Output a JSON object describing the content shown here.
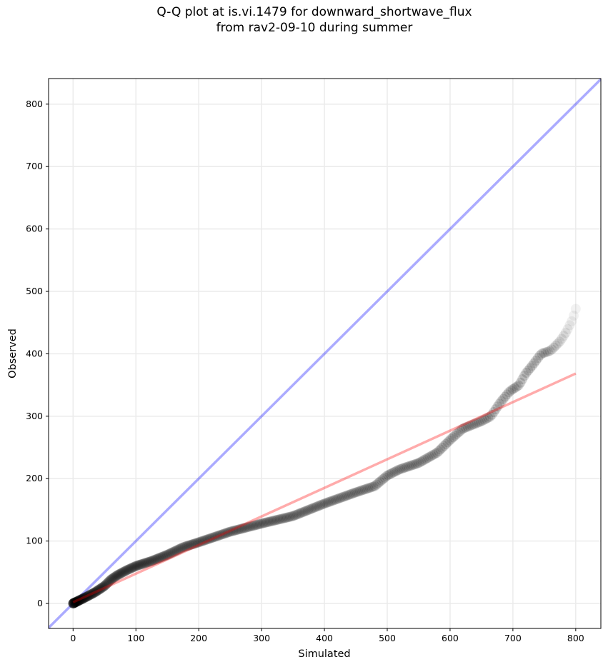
{
  "chart_data": {
    "type": "scatter",
    "title": [
      "Q-Q plot at is.vi.1479 for downward_shortwave_flux",
      "from rav2-09-10 during summer"
    ],
    "xlabel": "Simulated",
    "ylabel": "Observed",
    "xlim": [
      -39,
      840
    ],
    "ylim": [
      -40,
      841
    ],
    "xticks": [
      0,
      100,
      200,
      300,
      400,
      500,
      600,
      700,
      800
    ],
    "yticks": [
      0,
      100,
      200,
      300,
      400,
      500,
      600,
      700,
      800
    ],
    "grid": true,
    "quantiles": {
      "x": [
        0,
        10,
        20,
        35,
        50,
        60,
        70,
        85,
        100,
        125,
        150,
        175,
        200,
        250,
        300,
        350,
        400,
        450,
        480,
        500,
        520,
        550,
        580,
        600,
        620,
        650,
        665,
        680,
        695,
        710,
        720,
        730,
        745,
        760,
        775,
        785,
        795,
        800
      ],
      "y": [
        0,
        5,
        10,
        18,
        28,
        38,
        45,
        53,
        60,
        68,
        78,
        90,
        98,
        115,
        128,
        140,
        160,
        178,
        188,
        205,
        215,
        225,
        242,
        262,
        280,
        292,
        300,
        322,
        340,
        350,
        368,
        380,
        400,
        405,
        420,
        435,
        455,
        472
      ]
    },
    "series": [
      {
        "name": "1:1 line",
        "color": "#0000ff",
        "slope": 1,
        "intercept": 0
      },
      {
        "name": "fit line",
        "color": "#ff0000",
        "slope": 0.458,
        "intercept": 2,
        "x_range": [
          0,
          800
        ]
      }
    ]
  }
}
